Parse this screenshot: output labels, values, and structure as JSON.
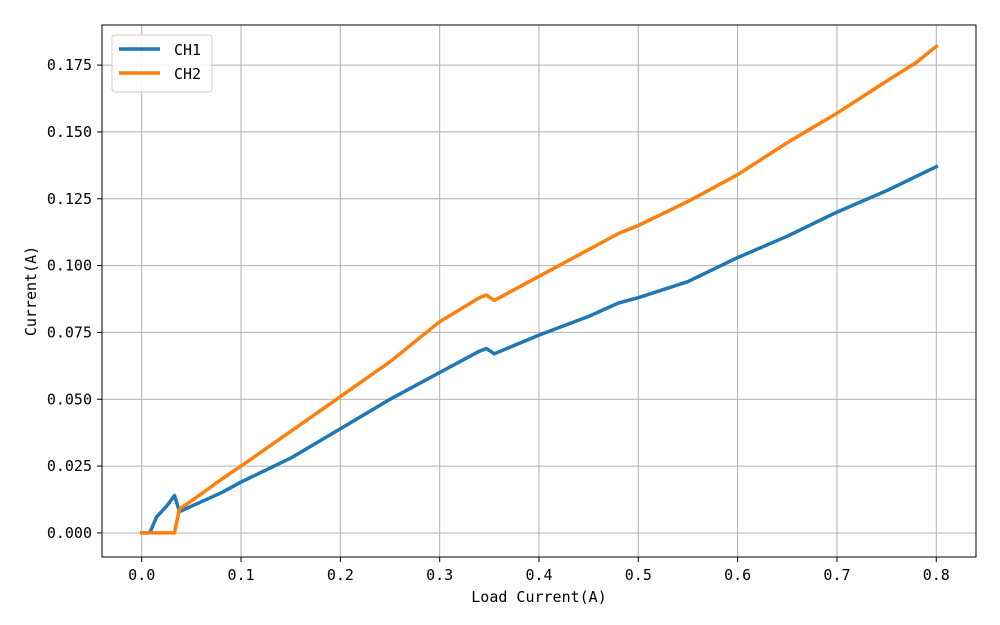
{
  "chart_data": {
    "type": "line",
    "title": "",
    "xlabel": "Load Current(A)",
    "ylabel": "Current(A)",
    "xlim": [
      -0.04,
      0.84
    ],
    "ylim": [
      -0.009,
      0.19
    ],
    "x_ticks": [
      0.0,
      0.1,
      0.2,
      0.3,
      0.4,
      0.5,
      0.6,
      0.7,
      0.8
    ],
    "x_tick_labels": [
      "0.0",
      "0.1",
      "0.2",
      "0.3",
      "0.4",
      "0.5",
      "0.6",
      "0.7",
      "0.8"
    ],
    "y_ticks": [
      0.0,
      0.025,
      0.05,
      0.075,
      0.1,
      0.125,
      0.15,
      0.175
    ],
    "y_tick_labels": [
      "0.000",
      "0.025",
      "0.050",
      "0.075",
      "0.100",
      "0.125",
      "0.150",
      "0.175"
    ],
    "grid": true,
    "legend_position": "top-left",
    "series": [
      {
        "name": "CH1",
        "color": "#1f77b4",
        "points": [
          [
            0.0,
            0.0
          ],
          [
            0.008,
            0.0
          ],
          [
            0.015,
            0.006
          ],
          [
            0.025,
            0.01
          ],
          [
            0.033,
            0.014
          ],
          [
            0.038,
            0.008
          ],
          [
            0.05,
            0.01
          ],
          [
            0.08,
            0.015
          ],
          [
            0.1,
            0.019
          ],
          [
            0.15,
            0.028
          ],
          [
            0.2,
            0.039
          ],
          [
            0.25,
            0.05
          ],
          [
            0.3,
            0.06
          ],
          [
            0.34,
            0.068
          ],
          [
            0.347,
            0.069
          ],
          [
            0.355,
            0.067
          ],
          [
            0.4,
            0.074
          ],
          [
            0.45,
            0.081
          ],
          [
            0.48,
            0.086
          ],
          [
            0.5,
            0.088
          ],
          [
            0.55,
            0.094
          ],
          [
            0.6,
            0.103
          ],
          [
            0.65,
            0.111
          ],
          [
            0.7,
            0.12
          ],
          [
            0.75,
            0.128
          ],
          [
            0.8,
            0.137
          ]
        ]
      },
      {
        "name": "CH2",
        "color": "#ff7f0e",
        "points": [
          [
            0.0,
            0.0
          ],
          [
            0.033,
            0.0
          ],
          [
            0.038,
            0.009
          ],
          [
            0.05,
            0.012
          ],
          [
            0.08,
            0.02
          ],
          [
            0.1,
            0.025
          ],
          [
            0.15,
            0.038
          ],
          [
            0.2,
            0.051
          ],
          [
            0.25,
            0.064
          ],
          [
            0.3,
            0.079
          ],
          [
            0.34,
            0.088
          ],
          [
            0.347,
            0.089
          ],
          [
            0.355,
            0.087
          ],
          [
            0.4,
            0.096
          ],
          [
            0.45,
            0.106
          ],
          [
            0.48,
            0.112
          ],
          [
            0.5,
            0.115
          ],
          [
            0.55,
            0.124
          ],
          [
            0.6,
            0.134
          ],
          [
            0.65,
            0.146
          ],
          [
            0.7,
            0.157
          ],
          [
            0.75,
            0.169
          ],
          [
            0.78,
            0.176
          ],
          [
            0.8,
            0.182
          ]
        ]
      }
    ]
  }
}
